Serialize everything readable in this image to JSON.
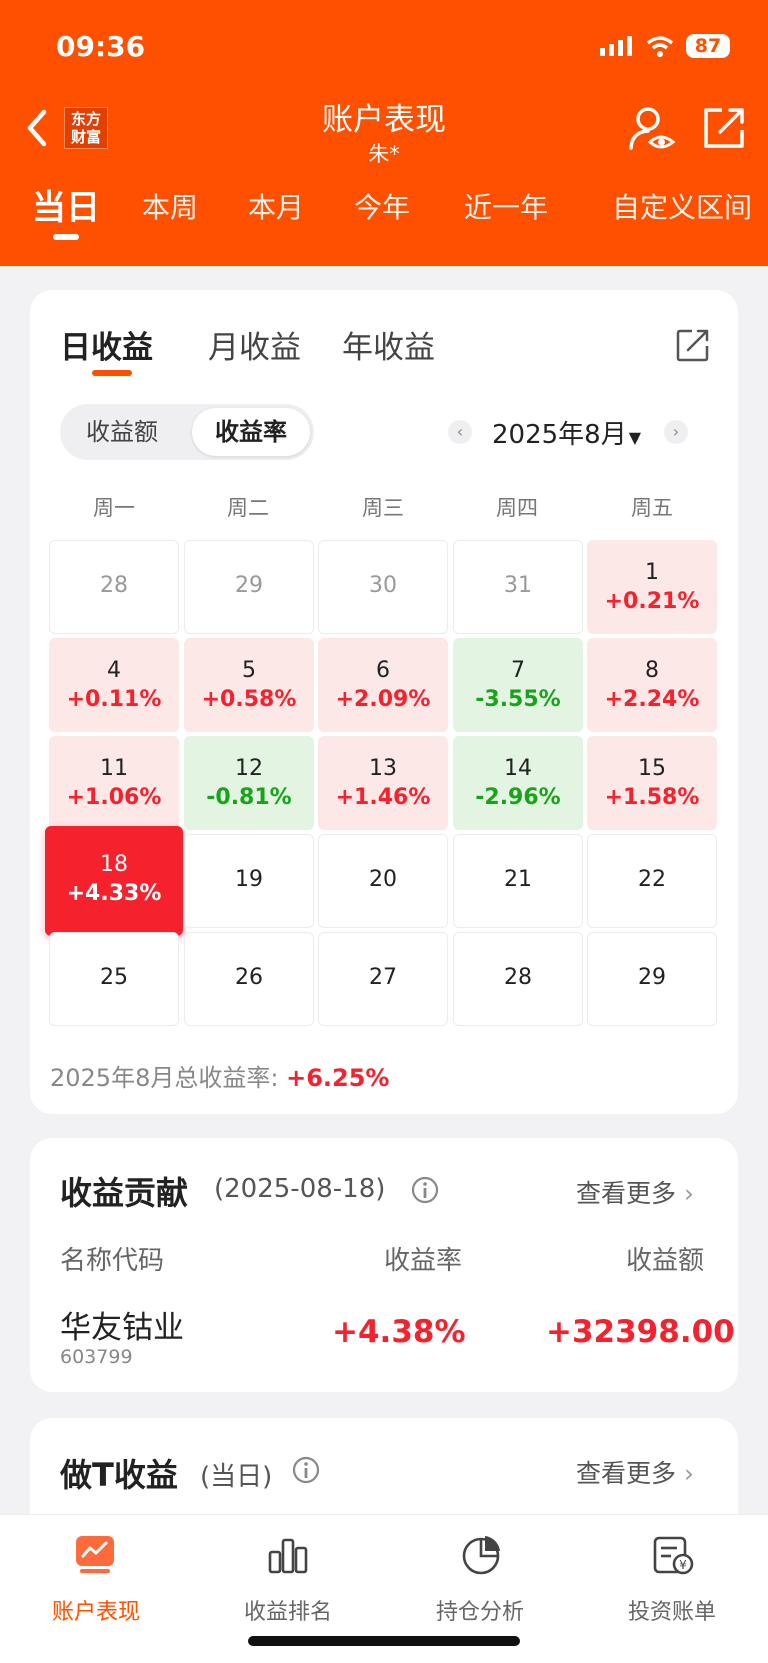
{
  "status": {
    "time": "09:36",
    "battery": "87"
  },
  "header": {
    "logo": "东方\n财富",
    "title": "账户表现",
    "subtitle": "朱*"
  },
  "period_tabs": [
    "当日",
    "本周",
    "本月",
    "今年",
    "近一年",
    "自定义区间"
  ],
  "calendar_card": {
    "tabs": [
      "日收益",
      "月收益",
      "年收益"
    ],
    "toggle": [
      "收益额",
      "收益率"
    ],
    "month": "2025年8月",
    "weekdays": [
      "周一",
      "周二",
      "周三",
      "周四",
      "周五"
    ],
    "days": [
      {
        "d": "28",
        "p": ""
      },
      {
        "d": "29",
        "p": ""
      },
      {
        "d": "30",
        "p": ""
      },
      {
        "d": "31",
        "p": ""
      },
      {
        "d": "1",
        "p": "+0.21%"
      },
      {
        "d": "4",
        "p": "+0.11%"
      },
      {
        "d": "5",
        "p": "+0.58%"
      },
      {
        "d": "6",
        "p": "+2.09%"
      },
      {
        "d": "7",
        "p": "-3.55%"
      },
      {
        "d": "8",
        "p": "+2.24%"
      },
      {
        "d": "11",
        "p": "+1.06%"
      },
      {
        "d": "12",
        "p": "-0.81%"
      },
      {
        "d": "13",
        "p": "+1.46%"
      },
      {
        "d": "14",
        "p": "-2.96%"
      },
      {
        "d": "15",
        "p": "+1.58%"
      },
      {
        "d": "18",
        "p": "+4.33%"
      },
      {
        "d": "19",
        "p": ""
      },
      {
        "d": "20",
        "p": ""
      },
      {
        "d": "21",
        "p": ""
      },
      {
        "d": "22",
        "p": ""
      },
      {
        "d": "25",
        "p": ""
      },
      {
        "d": "26",
        "p": ""
      },
      {
        "d": "27",
        "p": ""
      },
      {
        "d": "28",
        "p": ""
      },
      {
        "d": "29",
        "p": ""
      }
    ],
    "summary_label": "2025年8月总收益率:",
    "summary_value": "+6.25%"
  },
  "contribution": {
    "title": "收益贡献",
    "date": "(2025-08-18)",
    "more": "查看更多",
    "columns": [
      "名称代码",
      "收益率",
      "收益额"
    ],
    "row": {
      "name": "华友钴业",
      "code": "603799",
      "rate": "+4.38%",
      "amount": "+32398.00"
    }
  },
  "t_section": {
    "title": "做T收益",
    "note": "(当日)",
    "more": "查看更多"
  },
  "bottom_nav": [
    "账户表现",
    "收益排名",
    "持仓分析",
    "投资账单"
  ],
  "colors": {
    "brand": "#ff5000",
    "up": "#f5222d",
    "down": "#18a418"
  }
}
